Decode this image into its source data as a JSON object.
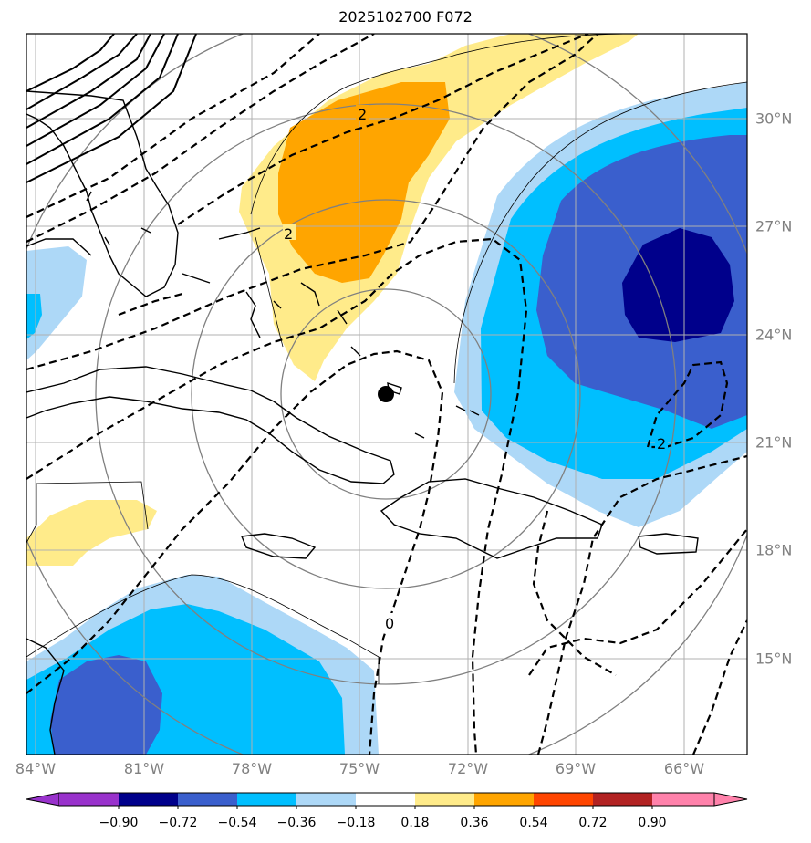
{
  "title": "2025102700 F072",
  "lon_labels": [
    "84°W",
    "81°W",
    "78°W",
    "75°W",
    "72°W",
    "69°W",
    "66°W"
  ],
  "lat_labels": [
    "30°N",
    "27°N",
    "24°N",
    "21°N",
    "18°N",
    "15°N"
  ],
  "contour_labels": [
    "2",
    "2",
    "2",
    "0"
  ],
  "colorbar": {
    "ticks": [
      "−0.90",
      "−0.72",
      "−0.54",
      "−0.36",
      "−0.18",
      "0.18",
      "0.36",
      "0.54",
      "0.72",
      "0.90"
    ],
    "colors": [
      "#9932cc",
      "#00008b",
      "#3a5fcd",
      "#00bfff",
      "#add8f7",
      "#ffffff",
      "#ffeb8a",
      "#ffa500",
      "#ff4500",
      "#b22222",
      "#ff82ab"
    ]
  },
  "colors": {
    "dark_blue": "#00008b",
    "royal_blue": "#3a5fcd",
    "deep_sky_blue": "#00bfff",
    "light_blue": "#add8f7",
    "light_yellow": "#ffeb8a",
    "orange": "#ffa500"
  }
}
